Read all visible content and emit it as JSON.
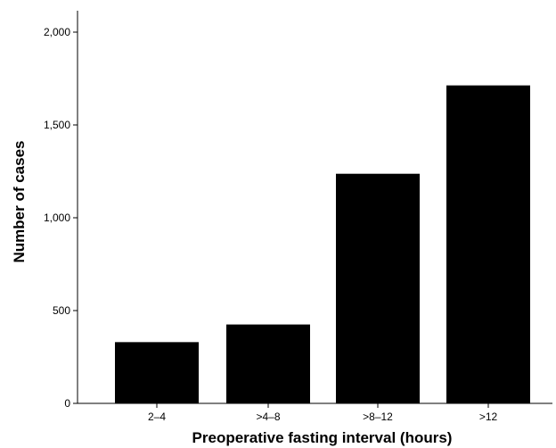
{
  "chart_data": {
    "type": "bar",
    "categories": [
      "2–4",
      ">4–8",
      ">8–12",
      ">12"
    ],
    "values": [
      330,
      425,
      1237,
      1713
    ],
    "title": "",
    "xlabel": "Preoperative fasting interval (hours)",
    "ylabel": "Number of cases",
    "ylim": [
      0,
      2000
    ],
    "yticks": [
      0,
      500,
      1000,
      1500,
      2000
    ],
    "ytick_labels": [
      "0",
      "500",
      "1,000",
      "1,500",
      "2,000"
    ],
    "grid": false,
    "legend": "none",
    "bar_color": "#000000",
    "axis_color": "#000000"
  }
}
